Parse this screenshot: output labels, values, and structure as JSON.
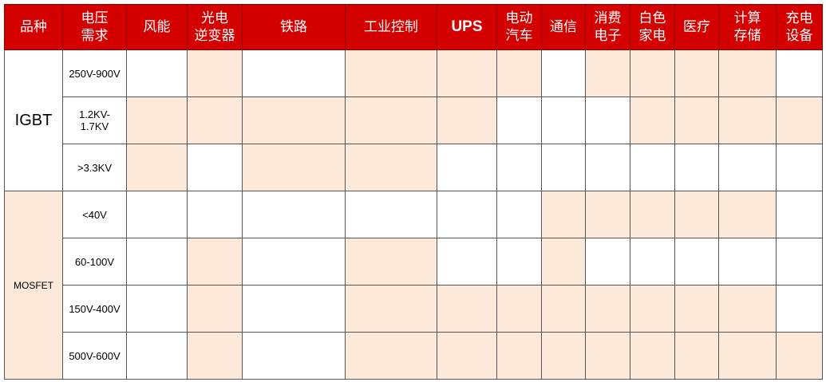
{
  "colors": {
    "header_bg": "#D40000",
    "highlight": "#FDE9D9",
    "plain": "#FFFFFF"
  },
  "headers": [
    "品种",
    "电压\n需求",
    "风能",
    "光电\n逆变器",
    "铁路",
    "工业控制",
    "UPS",
    "电动\n汽车",
    "通信",
    "消费\n电子",
    "白色\n家电",
    "医疗",
    "计算\n存储",
    "充电\n设备"
  ],
  "groups": [
    {
      "name": "IGBT",
      "rows": [
        {
          "voltage": "250V-900V",
          "applies": [
            false,
            true,
            false,
            true,
            true,
            true,
            false,
            true,
            true,
            true,
            true,
            false
          ]
        },
        {
          "voltage": "1.2KV-\n1.7KV",
          "applies": [
            true,
            true,
            true,
            true,
            true,
            false,
            false,
            false,
            true,
            true,
            true,
            true
          ]
        },
        {
          "voltage": ">3.3KV",
          "applies": [
            true,
            false,
            true,
            true,
            false,
            false,
            false,
            false,
            false,
            false,
            false,
            false
          ]
        }
      ]
    },
    {
      "name": "MOSFET",
      "rows": [
        {
          "voltage": "<40V",
          "applies": [
            false,
            false,
            false,
            false,
            false,
            false,
            true,
            true,
            true,
            true,
            true,
            false
          ]
        },
        {
          "voltage": "60-100V",
          "applies": [
            false,
            true,
            false,
            true,
            false,
            false,
            true,
            false,
            false,
            false,
            false,
            false
          ]
        },
        {
          "voltage": "150V-400V",
          "applies": [
            false,
            true,
            false,
            true,
            true,
            true,
            true,
            true,
            true,
            true,
            true,
            false
          ]
        },
        {
          "voltage": "500V-600V",
          "applies": [
            false,
            true,
            false,
            true,
            true,
            true,
            true,
            true,
            true,
            true,
            true,
            true
          ]
        }
      ]
    }
  ]
}
